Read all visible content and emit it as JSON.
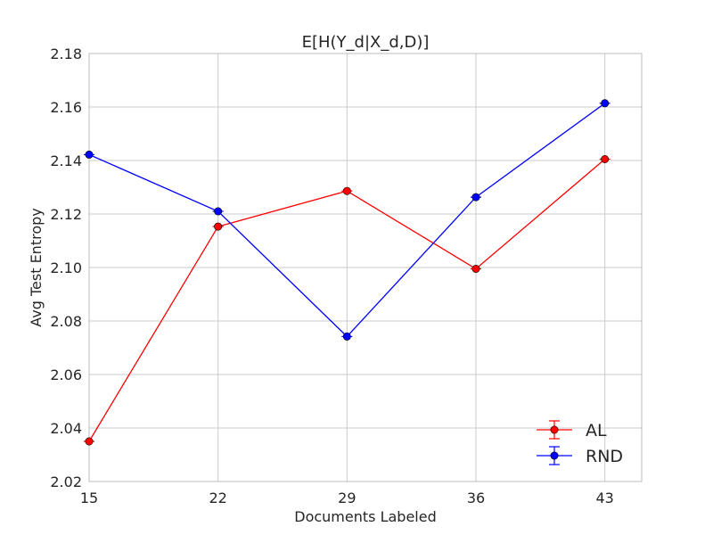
{
  "chart_data": {
    "type": "line",
    "title": "E[H(Y_d|X_d,D)]",
    "xlabel": "Documents Labeled",
    "ylabel": "Avg Test Entropy",
    "x": [
      15,
      22,
      29,
      36,
      43
    ],
    "xticks": [
      "15",
      "22",
      "29",
      "36",
      "43"
    ],
    "xlim": [
      15,
      45
    ],
    "ylim": [
      2.02,
      2.18
    ],
    "yticks": [
      "2.02",
      "2.04",
      "2.06",
      "2.08",
      "2.10",
      "2.12",
      "2.14",
      "2.16",
      "2.18"
    ],
    "grid": true,
    "legend_position": "bottom-right",
    "series": [
      {
        "name": "AL",
        "color": "#ff0000",
        "values": [
          2.035,
          2.1153,
          2.1286,
          2.0995,
          2.1405
        ]
      },
      {
        "name": "RND",
        "color": "#0000ff",
        "values": [
          2.1422,
          2.121,
          2.0742,
          2.1263,
          2.1614
        ]
      }
    ]
  }
}
